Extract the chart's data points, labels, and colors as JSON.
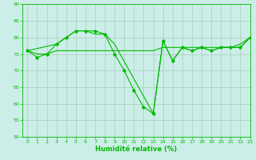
{
  "xlabel": "Humidité relative (%)",
  "ylim": [
    50,
    90
  ],
  "xlim": [
    -0.5,
    23
  ],
  "yticks": [
    50,
    55,
    60,
    65,
    70,
    75,
    80,
    85,
    90
  ],
  "xticks": [
    0,
    1,
    2,
    3,
    4,
    5,
    6,
    7,
    8,
    9,
    10,
    11,
    12,
    13,
    14,
    15,
    16,
    17,
    18,
    19,
    20,
    21,
    22,
    23
  ],
  "bg_color": "#cceee8",
  "grid_color": "#aaccbb",
  "line_color": "#00bb00",
  "series1_x": [
    0,
    1,
    2,
    3,
    4,
    5,
    6,
    7,
    8,
    9,
    10,
    11,
    12,
    13,
    14,
    15,
    16,
    17,
    18,
    19,
    20,
    21,
    22,
    23
  ],
  "series1_y": [
    76,
    74,
    75,
    78,
    80,
    82,
    82,
    82,
    81,
    75,
    70,
    64,
    59,
    57,
    79,
    73,
    77,
    76,
    77,
    76,
    77,
    77,
    77,
    80
  ],
  "series2_x": [
    0,
    1,
    2,
    3,
    4,
    5,
    6,
    7,
    8,
    9,
    10,
    11,
    12,
    13,
    14,
    15,
    16,
    17,
    18,
    19,
    20,
    21,
    22,
    23
  ],
  "series2_y": [
    76,
    75,
    75,
    76,
    76,
    76,
    76,
    76,
    76,
    76,
    76,
    76,
    76,
    76,
    77,
    77,
    77,
    77,
    77,
    77,
    77,
    77,
    78,
    80
  ],
  "series3_x": [
    0,
    3,
    4,
    5,
    6,
    7,
    8,
    9,
    13,
    14,
    15,
    16,
    17,
    18,
    19,
    20,
    21,
    22,
    23
  ],
  "series3_y": [
    76,
    78,
    80,
    82,
    82,
    81,
    81,
    78,
    57,
    79,
    73,
    77,
    76,
    77,
    76,
    77,
    77,
    77,
    80
  ],
  "marker": "D",
  "markersize": 1.8,
  "linewidth": 0.8,
  "xlabel_fontsize": 6.0,
  "tick_fontsize": 4.5
}
